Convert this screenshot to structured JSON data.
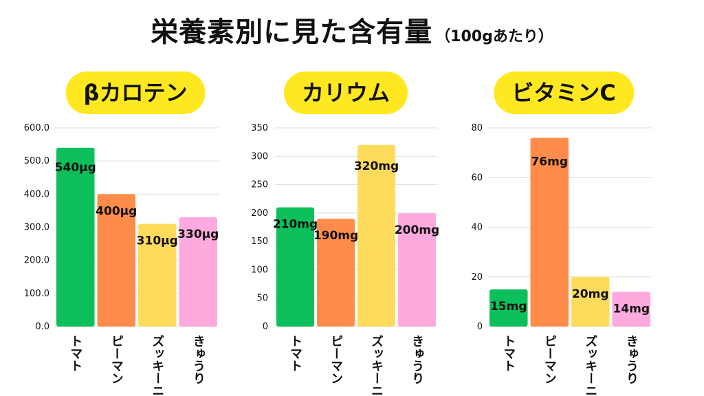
{
  "title": {
    "main": "栄養素別に見た含有量",
    "sub": "（100gあたり）"
  },
  "colors": {
    "pill": "#ffe81f",
    "tomato": "#0cbf5a",
    "piman": "#ff8c4a",
    "zucchini": "#ffdb5c",
    "kyuri": "#ffaadf",
    "grid": "#dddddd"
  },
  "chart_data": [
    {
      "type": "bar",
      "title": "βカロテン",
      "categories": [
        "トマト",
        "ピーマン",
        "ズッキーニ",
        "きゅうり"
      ],
      "values": [
        540,
        400,
        310,
        330
      ],
      "data_labels": [
        "540μg",
        "400μg",
        "310μg",
        "330μg"
      ],
      "yticks": [
        "0.0",
        "100.0",
        "200.0",
        "300.0",
        "400.0",
        "500.0",
        "600.0"
      ],
      "ylim": [
        0,
        600
      ],
      "grid": true
    },
    {
      "type": "bar",
      "title": "カリウム",
      "categories": [
        "トマト",
        "ピーマン",
        "ズッキーニ",
        "きゅうり"
      ],
      "values": [
        210,
        190,
        320,
        200
      ],
      "data_labels": [
        "210mg",
        "190mg",
        "320mg",
        "200mg"
      ],
      "yticks": [
        "0",
        "50",
        "100",
        "150",
        "200",
        "250",
        "300",
        "350"
      ],
      "ylim": [
        0,
        350
      ],
      "grid": true
    },
    {
      "type": "bar",
      "title": "ビタミンC",
      "categories": [
        "トマト",
        "ピーマン",
        "ズッキーニ",
        "きゅうり"
      ],
      "values": [
        15,
        76,
        20,
        14
      ],
      "data_labels": [
        "15mg",
        "76mg",
        "20mg",
        "14mg"
      ],
      "yticks": [
        "0",
        "20",
        "40",
        "60",
        "80"
      ],
      "ylim": [
        0,
        80
      ],
      "grid": true
    }
  ]
}
